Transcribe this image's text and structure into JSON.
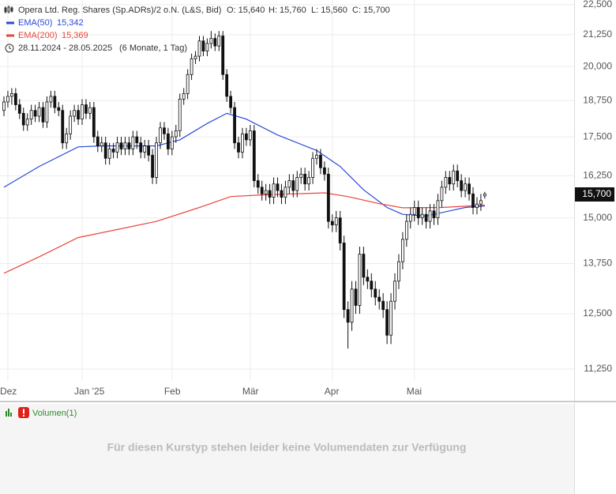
{
  "chart_data": {
    "type": "candlestick",
    "title": "Opera Ltd. Reg. Shares (Sp.ADRs)/2 o.N. (L&S, Bid)",
    "quote": [
      "O: 15,640",
      "H: 15,760",
      "L: 15,560",
      "C: 15,700"
    ],
    "period": "28.11.2024 - 28.05.2025",
    "period_note": "(6 Monate, 1 Tag)",
    "last_label": "15,700",
    "log_scale": true,
    "grid": true,
    "ylim": [
      11000,
      22700
    ],
    "yticks": [
      {
        "value": 11250,
        "label": "11,250"
      },
      {
        "value": 12500,
        "label": "12,500"
      },
      {
        "value": 13750,
        "label": "13,750"
      },
      {
        "value": 15000,
        "label": "15,000"
      },
      {
        "value": 16250,
        "label": "16,250"
      },
      {
        "value": 17500,
        "label": "17,500"
      },
      {
        "value": 18750,
        "label": "18,750"
      },
      {
        "value": 20000,
        "label": "20,000"
      },
      {
        "value": 21250,
        "label": "21,250"
      },
      {
        "value": 22500,
        "label": "22,500"
      }
    ],
    "categories": [
      null,
      "Dez",
      null,
      null,
      null,
      null,
      null,
      null,
      null,
      null,
      null,
      null,
      null,
      null,
      null,
      null,
      null,
      null,
      null,
      null,
      "Jan '25",
      null,
      null,
      null,
      null,
      null,
      null,
      null,
      null,
      null,
      null,
      null,
      null,
      null,
      null,
      null,
      null,
      null,
      null,
      null,
      null,
      null,
      null,
      "Feb",
      null,
      null,
      null,
      null,
      null,
      null,
      null,
      null,
      null,
      null,
      null,
      null,
      null,
      null,
      null,
      null,
      null,
      null,
      null,
      "Mär",
      null,
      null,
      null,
      null,
      null,
      null,
      null,
      null,
      null,
      null,
      null,
      null,
      null,
      null,
      null,
      null,
      null,
      null,
      null,
      null,
      "Apr",
      null,
      null,
      null,
      null,
      null,
      null,
      null,
      null,
      null,
      null,
      null,
      null,
      null,
      null,
      null,
      null,
      null,
      null,
      null,
      null,
      "Mai",
      null,
      null,
      null,
      null,
      null,
      null,
      null,
      null,
      null,
      null,
      null,
      null,
      null,
      null,
      null,
      null,
      null,
      null
    ],
    "open": [
      18400,
      18700,
      18900,
      19000,
      18600,
      18300,
      17900,
      18100,
      18400,
      18200,
      18500,
      18000,
      18700,
      18900,
      18500,
      18400,
      17300,
      17600,
      18200,
      18400,
      18100,
      18600,
      18300,
      18500,
      17500,
      17200,
      17300,
      16800,
      17100,
      17000,
      17300,
      17100,
      17300,
      17100,
      17500,
      17300,
      17000,
      17200,
      16900,
      16200,
      17300,
      17800,
      17600,
      17100,
      17500,
      17700,
      18800,
      19000,
      19700,
      20300,
      20400,
      21000,
      20600,
      20900,
      21100,
      20800,
      21200,
      19700,
      18900,
      18500,
      17300,
      17000,
      17600,
      17400,
      17700,
      16100,
      15900,
      15700,
      15800,
      15600,
      16000,
      15800,
      15600,
      15900,
      16100,
      15800,
      16200,
      16300,
      16000,
      16200,
      16800,
      16900,
      16500,
      16300,
      14900,
      14800,
      15000,
      14300,
      12600,
      12300,
      13100,
      12700,
      14000,
      13400,
      13300,
      13100,
      12900,
      12800,
      12600,
      12000,
      12800,
      13300,
      13800,
      14400,
      14900,
      15100,
      15300,
      15000,
      15100,
      14900,
      15200,
      15000,
      15500,
      15900,
      16200,
      16000,
      16400,
      16100,
      15800,
      16000,
      15700,
      15300,
      15400,
      15640
    ],
    "high": [
      18900,
      19100,
      19200,
      19200,
      18800,
      18500,
      18300,
      18600,
      18600,
      18700,
      18700,
      18900,
      19100,
      19100,
      18700,
      18600,
      17800,
      18400,
      18600,
      18600,
      18800,
      18800,
      18700,
      18700,
      17700,
      17500,
      17500,
      17300,
      17300,
      17500,
      17500,
      17500,
      17500,
      17700,
      17700,
      17500,
      17400,
      17400,
      17100,
      17500,
      18000,
      18000,
      17800,
      17700,
      17900,
      19000,
      19200,
      19900,
      20500,
      20600,
      21200,
      21200,
      21100,
      21400,
      21300,
      21400,
      21400,
      19900,
      19100,
      18700,
      17500,
      17800,
      17800,
      17900,
      17900,
      16300,
      16100,
      16000,
      16000,
      16200,
      16200,
      16000,
      16100,
      16300,
      16300,
      16400,
      16500,
      16500,
      16400,
      17000,
      17100,
      17100,
      16700,
      16500,
      15100,
      15200,
      15200,
      14500,
      12800,
      13300,
      13300,
      14200,
      14200,
      13600,
      13500,
      13300,
      13100,
      13000,
      12800,
      13000,
      13500,
      14000,
      14600,
      15100,
      15300,
      15500,
      15500,
      15300,
      15300,
      15400,
      15400,
      15700,
      16100,
      16400,
      16400,
      16600,
      16600,
      16300,
      16200,
      16200,
      15900,
      15600,
      15700,
      15760
    ],
    "low": [
      18200,
      18500,
      18600,
      18400,
      18100,
      17700,
      17700,
      17900,
      18000,
      18000,
      17800,
      17800,
      18500,
      18300,
      18200,
      17100,
      17100,
      17400,
      18000,
      17900,
      17900,
      18100,
      18100,
      17300,
      17000,
      17000,
      16600,
      16600,
      16800,
      16800,
      16900,
      16900,
      16900,
      16900,
      17100,
      16800,
      16800,
      16700,
      16000,
      16000,
      17100,
      17400,
      16900,
      16900,
      17300,
      17500,
      18600,
      18800,
      19500,
      20100,
      20200,
      20400,
      20400,
      20700,
      20600,
      20600,
      19500,
      18700,
      18300,
      17100,
      16800,
      16800,
      17200,
      17200,
      15900,
      15700,
      15500,
      15500,
      15400,
      15400,
      15600,
      15400,
      15400,
      15700,
      15600,
      15600,
      16000,
      15800,
      15800,
      16000,
      16600,
      16300,
      16100,
      14700,
      14600,
      14600,
      14100,
      12400,
      11700,
      12100,
      12500,
      12500,
      13200,
      13100,
      12900,
      12700,
      12600,
      12400,
      11800,
      11800,
      12600,
      13100,
      13600,
      14200,
      14700,
      14900,
      14800,
      14800,
      14700,
      14700,
      14800,
      14800,
      15300,
      15700,
      15800,
      15800,
      15900,
      15600,
      15600,
      15500,
      15100,
      15100,
      15200,
      15560
    ],
    "close": [
      18700,
      18900,
      19000,
      18600,
      18300,
      17900,
      18100,
      18400,
      18200,
      18500,
      18000,
      18700,
      18900,
      18500,
      18400,
      17300,
      17600,
      18200,
      18400,
      18100,
      18600,
      18300,
      18500,
      17500,
      17200,
      17300,
      16800,
      17100,
      17000,
      17300,
      17100,
      17300,
      17100,
      17500,
      17300,
      17000,
      17200,
      16900,
      16200,
      17300,
      17800,
      17600,
      17100,
      17500,
      17700,
      18800,
      19000,
      19700,
      20300,
      20400,
      21000,
      20600,
      20900,
      21100,
      20800,
      21200,
      19700,
      18900,
      18500,
      17300,
      17000,
      17600,
      17400,
      17700,
      16100,
      15900,
      15700,
      15800,
      15600,
      16000,
      15800,
      15600,
      15900,
      16100,
      15800,
      16200,
      16300,
      16000,
      16200,
      16800,
      16900,
      16500,
      16300,
      14900,
      14800,
      15000,
      14300,
      12600,
      12300,
      13100,
      12700,
      14000,
      13400,
      13300,
      13100,
      12900,
      12800,
      12600,
      12000,
      12800,
      13300,
      13800,
      14400,
      14900,
      15100,
      15300,
      15000,
      15100,
      14900,
      15200,
      15000,
      15500,
      15900,
      16200,
      16000,
      16400,
      16100,
      15800,
      16000,
      15700,
      15300,
      15400,
      15500,
      15700
    ],
    "lines": [
      {
        "name": "EMA(50)",
        "value_label": "15,342",
        "color": "#2a4bd7",
        "x": [
          0,
          9,
          19,
          25,
          39,
          45,
          52,
          57,
          62,
          70,
          80,
          86,
          92,
          98,
          102,
          108,
          114,
          118,
          123
        ],
        "values": [
          15900,
          16540,
          17170,
          17200,
          17200,
          17400,
          17950,
          18300,
          18100,
          17560,
          17050,
          16540,
          15820,
          15300,
          15100,
          15050,
          15200,
          15300,
          15342
        ]
      },
      {
        "name": "EMA(200)",
        "value_label": "15,369",
        "color": "#e8453c",
        "x": [
          0,
          9,
          19,
          29,
          39,
          50,
          58,
          66,
          82,
          88,
          96,
          102,
          112,
          123
        ],
        "values": [
          13500,
          13930,
          14450,
          14670,
          14900,
          15300,
          15620,
          15670,
          15730,
          15620,
          15410,
          15290,
          15300,
          15369
        ]
      }
    ],
    "volume_panel": {
      "title": "Volumen(1)",
      "message": "Für diesen Kurstyp stehen leider keine Volumendaten zur Verfügung"
    }
  }
}
